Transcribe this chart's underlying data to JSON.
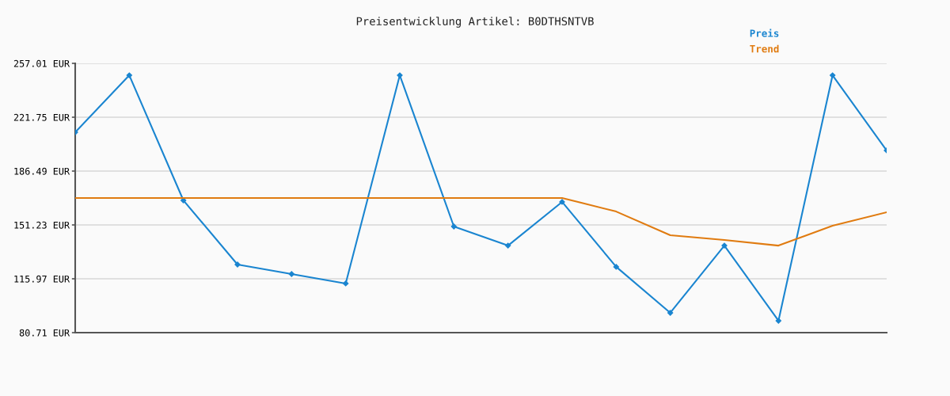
{
  "chart_data": {
    "type": "line",
    "title": "Preisentwicklung Artikel: B0DTHSNTVB",
    "categories": [
      null,
      null,
      null,
      null,
      null,
      null,
      null,
      null,
      null,
      null,
      null,
      null,
      null,
      null,
      null,
      null
    ],
    "series": [
      {
        "name": "Preis",
        "color": "#1a85d0",
        "marker": "diamond",
        "values": [
          211.9,
          249.2,
          167.3,
          125.3,
          119.1,
          112.9,
          249.2,
          150.2,
          137.7,
          166.3,
          123.8,
          93.7,
          137.7,
          88.5,
          249.2,
          200.0
        ]
      },
      {
        "name": "Trend",
        "color": "#e07b10",
        "marker": "none",
        "values": [
          168.9,
          168.9,
          168.9,
          168.9,
          168.9,
          168.9,
          168.9,
          168.9,
          168.9,
          168.9,
          160.0,
          144.5,
          141.4,
          137.7,
          150.7,
          159.5
        ]
      }
    ],
    "ylim": [
      80.71,
      257.01
    ],
    "yticks": [
      {
        "value": 80.71,
        "label": "80.71 EUR"
      },
      {
        "value": 115.97,
        "label": "115.97 EUR"
      },
      {
        "value": 151.23,
        "label": "151.23 EUR"
      },
      {
        "value": 186.49,
        "label": "186.49 EUR"
      },
      {
        "value": 221.75,
        "label": "221.75 EUR"
      },
      {
        "value": 257.01,
        "label": "257.01 EUR"
      }
    ],
    "grid": "y",
    "legend": "top right",
    "line_style": "solid"
  }
}
